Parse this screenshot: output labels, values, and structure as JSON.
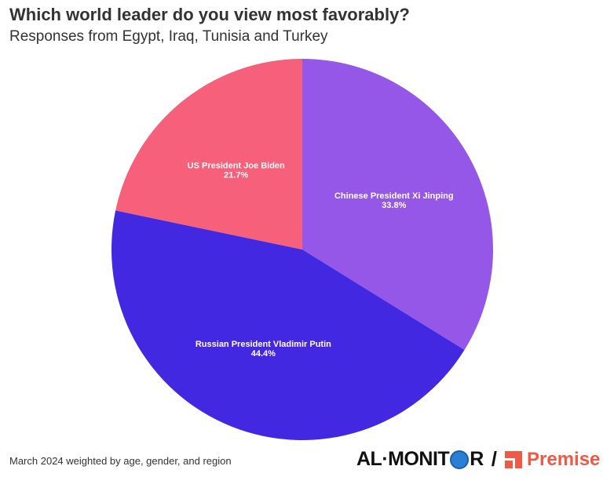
{
  "chart_data": {
    "type": "pie",
    "title": "Which world leader do you view most favorably?",
    "subtitle": "Responses from Egypt, Iraq, Tunisia and Turkey",
    "slices": [
      {
        "label": "Chinese President Xi Jinping",
        "value": 33.8,
        "display": "33.8%",
        "color": "#9457e8"
      },
      {
        "label": "Russian President Vladimir Putin",
        "value": 44.4,
        "display": "44.4%",
        "color": "#4228e0"
      },
      {
        "label": "US President Joe Biden",
        "value": 21.7,
        "display": "21.7%",
        "color": "#f7607a"
      }
    ],
    "start": "12 o'clock, clockwise"
  },
  "footer": {
    "note": "March 2024 weighted by age, gender, and region"
  },
  "logos": {
    "almonitor_left": "AL·MONIT",
    "almonitor_right": "R",
    "slash": "/",
    "premise": "Premise",
    "premise_color": "#ef5a46"
  }
}
